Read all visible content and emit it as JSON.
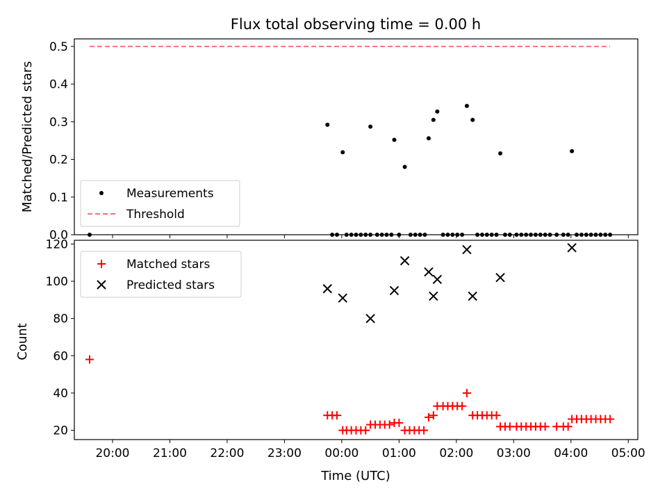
{
  "chart_data": [
    {
      "type": "scatter",
      "title": "Flux total observing time = 0.00 h",
      "xlabel": "",
      "ylabel": "Matched/Predicted stars",
      "ylim": [
        0,
        0.52
      ],
      "yticks": [
        "0.0",
        "0.1",
        "0.2",
        "0.3",
        "0.4",
        "0.5"
      ],
      "xlim": [
        "19:20",
        "05:10"
      ],
      "grid": false,
      "legend_position": "lower-left",
      "series": [
        {
          "name": "Measurements",
          "marker": "dot",
          "color": "#000000",
          "points": [
            [
              "19:36",
              0.0
            ],
            [
              "23:45",
              0.292
            ],
            [
              "23:50",
              0.0
            ],
            [
              "23:55",
              0.0
            ],
            [
              "00:01",
              0.219
            ],
            [
              "00:05",
              0.0
            ],
            [
              "00:10",
              0.0
            ],
            [
              "00:15",
              0.0
            ],
            [
              "00:20",
              0.0
            ],
            [
              "00:25",
              0.0
            ],
            [
              "00:30",
              0.0
            ],
            [
              "00:30",
              0.287
            ],
            [
              "00:37",
              0.0
            ],
            [
              "00:42",
              0.0
            ],
            [
              "00:47",
              0.0
            ],
            [
              "00:52",
              0.0
            ],
            [
              "00:55",
              0.252
            ],
            [
              "01:00",
              0.0
            ],
            [
              "01:06",
              0.18
            ],
            [
              "01:12",
              0.0
            ],
            [
              "01:17",
              0.0
            ],
            [
              "01:22",
              0.0
            ],
            [
              "01:27",
              0.0
            ],
            [
              "01:31",
              0.256
            ],
            [
              "01:36",
              0.305
            ],
            [
              "01:40",
              0.327
            ],
            [
              "01:46",
              0.0
            ],
            [
              "01:51",
              0.0
            ],
            [
              "01:56",
              0.0
            ],
            [
              "02:01",
              0.0
            ],
            [
              "02:06",
              0.0
            ],
            [
              "02:11",
              0.342
            ],
            [
              "02:17",
              0.305
            ],
            [
              "02:22",
              0.0
            ],
            [
              "02:27",
              0.0
            ],
            [
              "02:32",
              0.0
            ],
            [
              "02:37",
              0.0
            ],
            [
              "02:42",
              0.0
            ],
            [
              "02:46",
              0.216
            ],
            [
              "02:51",
              0.0
            ],
            [
              "02:56",
              0.0
            ],
            [
              "03:03",
              0.0
            ],
            [
              "03:08",
              0.0
            ],
            [
              "03:13",
              0.0
            ],
            [
              "03:18",
              0.0
            ],
            [
              "03:23",
              0.0
            ],
            [
              "03:28",
              0.0
            ],
            [
              "03:33",
              0.0
            ],
            [
              "03:38",
              0.0
            ],
            [
              "03:45",
              0.0
            ],
            [
              "03:52",
              0.0
            ],
            [
              "03:57",
              0.0
            ],
            [
              "04:01",
              0.222
            ],
            [
              "04:06",
              0.0
            ],
            [
              "04:11",
              0.0
            ],
            [
              "04:16",
              0.0
            ],
            [
              "04:21",
              0.0
            ],
            [
              "04:26",
              0.0
            ],
            [
              "04:31",
              0.0
            ],
            [
              "04:36",
              0.0
            ],
            [
              "04:41",
              0.0
            ]
          ]
        },
        {
          "name": "Threshold",
          "marker": "dashed-line",
          "color": "#ff7070",
          "points": [
            [
              "19:36",
              0.5
            ],
            [
              "04:41",
              0.5
            ]
          ]
        }
      ]
    },
    {
      "type": "scatter",
      "title": "",
      "xlabel": "Time (UTC)",
      "ylabel": "Count",
      "ylim": [
        15,
        122
      ],
      "yticks": [
        "20",
        "40",
        "60",
        "80",
        "100",
        "120"
      ],
      "xlim": [
        "19:20",
        "05:10"
      ],
      "xticks": [
        "20:00",
        "21:00",
        "22:00",
        "23:00",
        "00:00",
        "01:00",
        "02:00",
        "03:00",
        "04:00",
        "05:00"
      ],
      "grid": false,
      "legend_position": "upper-left",
      "series": [
        {
          "name": "Matched stars",
          "marker": "plus",
          "color": "#ff0000",
          "points": [
            [
              "19:36",
              58
            ],
            [
              "23:45",
              28
            ],
            [
              "23:50",
              28
            ],
            [
              "23:55",
              28
            ],
            [
              "00:01",
              20
            ],
            [
              "00:05",
              20
            ],
            [
              "00:10",
              20
            ],
            [
              "00:15",
              20
            ],
            [
              "00:20",
              20
            ],
            [
              "00:25",
              20
            ],
            [
              "00:30",
              23
            ],
            [
              "00:35",
              23
            ],
            [
              "00:40",
              23
            ],
            [
              "00:45",
              23
            ],
            [
              "00:50",
              23
            ],
            [
              "00:55",
              24
            ],
            [
              "01:00",
              24
            ],
            [
              "01:06",
              20
            ],
            [
              "01:11",
              20
            ],
            [
              "01:16",
              20
            ],
            [
              "01:21",
              20
            ],
            [
              "01:26",
              20
            ],
            [
              "01:31",
              27
            ],
            [
              "01:36",
              28
            ],
            [
              "01:40",
              33
            ],
            [
              "01:46",
              33
            ],
            [
              "01:51",
              33
            ],
            [
              "01:56",
              33
            ],
            [
              "02:01",
              33
            ],
            [
              "02:06",
              33
            ],
            [
              "02:11",
              40
            ],
            [
              "02:17",
              28
            ],
            [
              "02:22",
              28
            ],
            [
              "02:27",
              28
            ],
            [
              "02:32",
              28
            ],
            [
              "02:37",
              28
            ],
            [
              "02:42",
              28
            ],
            [
              "02:46",
              22
            ],
            [
              "02:51",
              22
            ],
            [
              "02:56",
              22
            ],
            [
              "03:03",
              22
            ],
            [
              "03:08",
              22
            ],
            [
              "03:13",
              22
            ],
            [
              "03:18",
              22
            ],
            [
              "03:23",
              22
            ],
            [
              "03:28",
              22
            ],
            [
              "03:33",
              22
            ],
            [
              "03:45",
              22
            ],
            [
              "03:52",
              22
            ],
            [
              "03:57",
              22
            ],
            [
              "04:01",
              26
            ],
            [
              "04:06",
              26
            ],
            [
              "04:11",
              26
            ],
            [
              "04:16",
              26
            ],
            [
              "04:21",
              26
            ],
            [
              "04:26",
              26
            ],
            [
              "04:31",
              26
            ],
            [
              "04:36",
              26
            ],
            [
              "04:41",
              26
            ]
          ]
        },
        {
          "name": "Predicted stars",
          "marker": "x",
          "color": "#000000",
          "points": [
            [
              "23:45",
              96
            ],
            [
              "00:01",
              91
            ],
            [
              "00:30",
              80
            ],
            [
              "00:55",
              95
            ],
            [
              "01:06",
              111
            ],
            [
              "01:31",
              105
            ],
            [
              "01:36",
              92
            ],
            [
              "01:40",
              101
            ],
            [
              "02:11",
              117
            ],
            [
              "02:17",
              92
            ],
            [
              "02:46",
              102
            ],
            [
              "04:01",
              118
            ]
          ]
        }
      ]
    }
  ]
}
